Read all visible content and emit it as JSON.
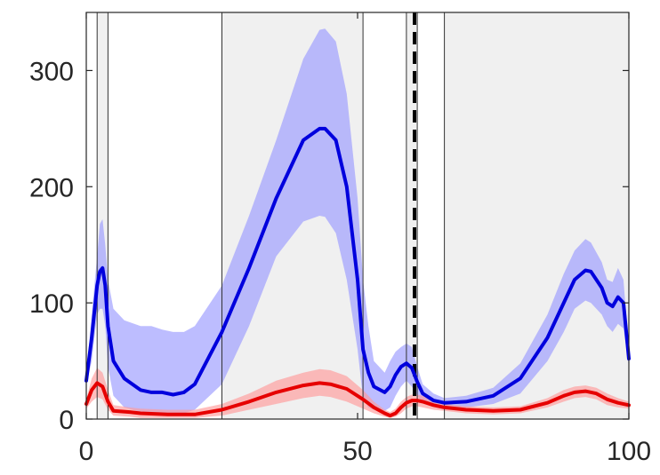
{
  "chart_data": {
    "type": "line",
    "title": "",
    "xlabel": "",
    "ylabel": "",
    "xlim": [
      0,
      100
    ],
    "ylim": [
      0,
      350
    ],
    "x_ticks": [
      {
        "value": 0,
        "label": "0"
      },
      {
        "value": 50,
        "label": "50"
      },
      {
        "value": 100,
        "label": "100"
      }
    ],
    "y_ticks": [
      {
        "value": 0,
        "label": "0"
      },
      {
        "value": 100,
        "label": "100"
      },
      {
        "value": 200,
        "label": "200"
      },
      {
        "value": 300,
        "label": "300"
      }
    ],
    "grid": false,
    "shaded_regions": [
      {
        "x0": 2,
        "x1": 4
      },
      {
        "x0": 25,
        "x1": 51
      },
      {
        "x0": 59,
        "x1": 61
      },
      {
        "x0": 66,
        "x1": 100
      }
    ],
    "vertical_lines": [
      2,
      4,
      25,
      51,
      59,
      61,
      66
    ],
    "dashed_line": 60.5,
    "series": [
      {
        "color": "#0000dd",
        "band_color": "#9999ff",
        "x": [
          0,
          1,
          2,
          2.5,
          3,
          3.5,
          4,
          5,
          7,
          10,
          12,
          14,
          16,
          18,
          20,
          25,
          30,
          35,
          40,
          43,
          44,
          46,
          48,
          50,
          51,
          52,
          53,
          55,
          56,
          57,
          58,
          59,
          60,
          61,
          62,
          64,
          66,
          70,
          75,
          80,
          85,
          88,
          90,
          92,
          93,
          95,
          96,
          97,
          98,
          99,
          100
        ],
        "values": [
          33,
          70,
          115,
          127,
          130,
          115,
          80,
          50,
          35,
          25,
          23,
          23,
          21,
          23,
          30,
          75,
          130,
          190,
          240,
          250,
          250,
          240,
          200,
          120,
          60,
          40,
          28,
          23,
          28,
          38,
          45,
          48,
          44,
          32,
          22,
          16,
          14,
          15,
          20,
          35,
          70,
          100,
          120,
          128,
          127,
          113,
          100,
          97,
          105,
          100,
          52
        ],
        "upper": [
          37,
          90,
          140,
          168,
          172,
          150,
          120,
          95,
          85,
          80,
          80,
          77,
          75,
          75,
          80,
          115,
          175,
          240,
          310,
          335,
          336,
          325,
          280,
          190,
          120,
          80,
          50,
          40,
          50,
          58,
          62,
          65,
          62,
          45,
          30,
          22,
          18,
          20,
          27,
          48,
          90,
          125,
          145,
          155,
          152,
          135,
          120,
          118,
          130,
          120,
          60
        ],
        "lower": [
          29,
          50,
          90,
          95,
          95,
          80,
          45,
          20,
          10,
          6,
          5,
          5,
          4,
          5,
          8,
          30,
          80,
          140,
          170,
          175,
          174,
          160,
          120,
          60,
          18,
          10,
          8,
          7,
          10,
          20,
          28,
          33,
          28,
          20,
          14,
          11,
          10,
          10,
          13,
          22,
          50,
          75,
          95,
          102,
          100,
          90,
          80,
          75,
          82,
          78,
          45
        ]
      },
      {
        "color": "#e60000",
        "band_color": "#ff9999",
        "x": [
          0,
          1,
          2,
          3,
          4,
          5,
          8,
          10,
          15,
          20,
          25,
          30,
          35,
          40,
          43,
          45,
          48,
          51,
          53,
          55,
          56,
          57,
          58,
          59,
          60,
          61,
          62,
          64,
          66,
          70,
          75,
          80,
          85,
          88,
          90,
          92,
          94,
          96,
          98,
          100
        ],
        "values": [
          13,
          25,
          31,
          28,
          15,
          7,
          6,
          5,
          4,
          4,
          8,
          15,
          23,
          29,
          31,
          30,
          26,
          17,
          10,
          5,
          3,
          5,
          10,
          14,
          16,
          16,
          15,
          12,
          10,
          8,
          7,
          8,
          14,
          20,
          23,
          24,
          22,
          17,
          14,
          12
        ],
        "upper": [
          17,
          35,
          44,
          40,
          25,
          12,
          10,
          9,
          8,
          8,
          13,
          22,
          33,
          40,
          43,
          42,
          37,
          25,
          15,
          8,
          6,
          9,
          15,
          19,
          21,
          21,
          20,
          16,
          13,
          11,
          10,
          11,
          18,
          25,
          28,
          29,
          27,
          22,
          18,
          15
        ],
        "lower": [
          9,
          15,
          19,
          17,
          8,
          3,
          2,
          1,
          1,
          1,
          3,
          8,
          13,
          18,
          20,
          19,
          15,
          9,
          5,
          2,
          1,
          2,
          5,
          9,
          11,
          11,
          10,
          8,
          7,
          5,
          4,
          5,
          10,
          15,
          18,
          19,
          17,
          12,
          10,
          9
        ]
      }
    ]
  }
}
